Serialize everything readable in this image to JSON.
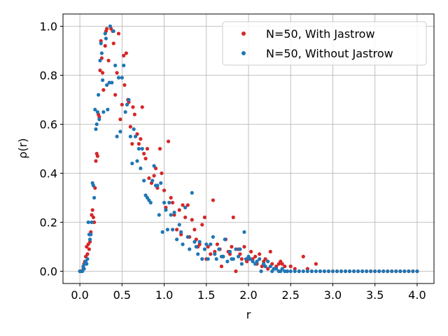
{
  "chart_data": {
    "type": "scatter",
    "xlabel": "r",
    "ylabel": "ρ(r)",
    "xlim": [
      -0.2,
      4.2
    ],
    "ylim": [
      -0.05,
      1.05
    ],
    "xticks": [
      0.0,
      0.5,
      1.0,
      1.5,
      2.0,
      2.5,
      3.0,
      3.5,
      4.0
    ],
    "xtick_labels": [
      "0.0",
      "0.5",
      "1.0",
      "1.5",
      "2.0",
      "2.5",
      "3.0",
      "3.5",
      "4.0"
    ],
    "yticks": [
      0.0,
      0.2,
      0.4,
      0.6,
      0.8,
      1.0
    ],
    "ytick_labels": [
      "0.0",
      "0.2",
      "0.4",
      "0.6",
      "0.8",
      "1.0"
    ],
    "grid": true,
    "legend_position": "top-right",
    "series": [
      {
        "name": "N=50, With Jastrow",
        "color": "#d62728",
        "points": [
          [
            0.0,
            0.0
          ],
          [
            0.02,
            0.0
          ],
          [
            0.04,
            0.01
          ],
          [
            0.05,
            0.03
          ],
          [
            0.06,
            0.04
          ],
          [
            0.07,
            0.06
          ],
          [
            0.08,
            0.1
          ],
          [
            0.09,
            0.07
          ],
          [
            0.1,
            0.11
          ],
          [
            0.11,
            0.09
          ],
          [
            0.12,
            0.12
          ],
          [
            0.13,
            0.16
          ],
          [
            0.14,
            0.23
          ],
          [
            0.15,
            0.25
          ],
          [
            0.16,
            0.22
          ],
          [
            0.17,
            0.2
          ],
          [
            0.18,
            0.34
          ],
          [
            0.19,
            0.45
          ],
          [
            0.2,
            0.48
          ],
          [
            0.21,
            0.47
          ],
          [
            0.22,
            0.64
          ],
          [
            0.23,
            0.63
          ],
          [
            0.24,
            0.82
          ],
          [
            0.25,
            0.94
          ],
          [
            0.26,
            0.87
          ],
          [
            0.27,
            0.81
          ],
          [
            0.28,
            0.74
          ],
          [
            0.3,
            0.92
          ],
          [
            0.31,
            0.98
          ],
          [
            0.32,
            0.99
          ],
          [
            0.34,
            0.86
          ],
          [
            0.35,
            0.77
          ],
          [
            0.37,
            0.99
          ],
          [
            0.39,
            0.98
          ],
          [
            0.4,
            0.93
          ],
          [
            0.42,
            0.72
          ],
          [
            0.44,
            0.81
          ],
          [
            0.46,
            0.97
          ],
          [
            0.48,
            0.62
          ],
          [
            0.5,
            0.68
          ],
          [
            0.52,
            0.88
          ],
          [
            0.53,
            0.76
          ],
          [
            0.55,
            0.89
          ],
          [
            0.57,
            0.7
          ],
          [
            0.58,
            0.69
          ],
          [
            0.6,
            0.59
          ],
          [
            0.62,
            0.52
          ],
          [
            0.63,
            0.67
          ],
          [
            0.65,
            0.64
          ],
          [
            0.68,
            0.56
          ],
          [
            0.7,
            0.52
          ],
          [
            0.72,
            0.54
          ],
          [
            0.74,
            0.67
          ],
          [
            0.76,
            0.48
          ],
          [
            0.78,
            0.46
          ],
          [
            0.8,
            0.5
          ],
          [
            0.82,
            0.38
          ],
          [
            0.85,
            0.36
          ],
          [
            0.88,
            0.39
          ],
          [
            0.9,
            0.42
          ],
          [
            0.92,
            0.34
          ],
          [
            0.95,
            0.5
          ],
          [
            0.97,
            0.4
          ],
          [
            1.0,
            0.33
          ],
          [
            1.02,
            0.26
          ],
          [
            1.05,
            0.53
          ],
          [
            1.08,
            0.3
          ],
          [
            1.1,
            0.28
          ],
          [
            1.12,
            0.23
          ],
          [
            1.15,
            0.17
          ],
          [
            1.18,
            0.25
          ],
          [
            1.2,
            0.15
          ],
          [
            1.22,
            0.27
          ],
          [
            1.25,
            0.22
          ],
          [
            1.28,
            0.27
          ],
          [
            1.3,
            0.14
          ],
          [
            1.33,
            0.21
          ],
          [
            1.36,
            0.17
          ],
          [
            1.38,
            0.13
          ],
          [
            1.4,
            0.1
          ],
          [
            1.42,
            0.11
          ],
          [
            1.45,
            0.19
          ],
          [
            1.48,
            0.22
          ],
          [
            1.5,
            0.05
          ],
          [
            1.52,
            0.1
          ],
          [
            1.55,
            0.07
          ],
          [
            1.58,
            0.29
          ],
          [
            1.6,
            0.08
          ],
          [
            1.63,
            0.11
          ],
          [
            1.66,
            0.09
          ],
          [
            1.68,
            0.02
          ],
          [
            1.7,
            0.06
          ],
          [
            1.73,
            0.13
          ],
          [
            1.76,
            0.08
          ],
          [
            1.78,
            0.07
          ],
          [
            1.8,
            0.1
          ],
          [
            1.82,
            0.22
          ],
          [
            1.85,
            0.0
          ],
          [
            1.88,
            0.09
          ],
          [
            1.9,
            0.07
          ],
          [
            1.92,
            0.05
          ],
          [
            1.95,
            0.1
          ],
          [
            1.98,
            0.04
          ],
          [
            2.0,
            0.05
          ],
          [
            2.03,
            0.08
          ],
          [
            2.05,
            0.05
          ],
          [
            2.08,
            0.06
          ],
          [
            2.1,
            0.03
          ],
          [
            2.13,
            0.07
          ],
          [
            2.16,
            0.02
          ],
          [
            2.18,
            0.04
          ],
          [
            2.2,
            0.05
          ],
          [
            2.23,
            0.01
          ],
          [
            2.26,
            0.08
          ],
          [
            2.28,
            0.03
          ],
          [
            2.3,
            0.01
          ],
          [
            2.33,
            0.02
          ],
          [
            2.36,
            0.03
          ],
          [
            2.38,
            0.04
          ],
          [
            2.4,
            0.03
          ],
          [
            2.43,
            0.02
          ],
          [
            2.46,
            0.0
          ],
          [
            2.5,
            0.02
          ],
          [
            2.55,
            0.01
          ],
          [
            2.6,
            0.0
          ],
          [
            2.65,
            0.06
          ],
          [
            2.7,
            0.01
          ],
          [
            2.75,
            0.0
          ],
          [
            2.8,
            0.03
          ],
          [
            2.85,
            0.0
          ],
          [
            2.9,
            0.0
          ],
          [
            2.95,
            0.0
          ],
          [
            3.0,
            0.0
          ],
          [
            3.05,
            0.0
          ],
          [
            3.1,
            0.0
          ],
          [
            3.15,
            0.0
          ],
          [
            3.2,
            0.0
          ],
          [
            3.25,
            0.0
          ],
          [
            3.3,
            0.0
          ],
          [
            3.35,
            0.0
          ],
          [
            3.4,
            0.0
          ],
          [
            3.45,
            0.0
          ],
          [
            3.5,
            0.0
          ],
          [
            3.55,
            0.0
          ],
          [
            3.6,
            0.0
          ],
          [
            3.65,
            0.0
          ],
          [
            3.7,
            0.0
          ],
          [
            3.75,
            0.0
          ],
          [
            3.8,
            0.0
          ],
          [
            3.85,
            0.0
          ],
          [
            3.9,
            0.0
          ],
          [
            3.95,
            0.0
          ],
          [
            4.0,
            0.0
          ]
        ]
      },
      {
        "name": "N=50, Without Jastrow",
        "color": "#1f77b4",
        "points": [
          [
            0.0,
            0.0
          ],
          [
            0.01,
            0.0
          ],
          [
            0.03,
            0.0
          ],
          [
            0.04,
            0.02
          ],
          [
            0.05,
            0.01
          ],
          [
            0.06,
            0.03
          ],
          [
            0.07,
            0.04
          ],
          [
            0.08,
            0.03
          ],
          [
            0.09,
            0.05
          ],
          [
            0.1,
            0.2
          ],
          [
            0.11,
            0.15
          ],
          [
            0.12,
            0.13
          ],
          [
            0.13,
            0.15
          ],
          [
            0.14,
            0.2
          ],
          [
            0.15,
            0.36
          ],
          [
            0.16,
            0.35
          ],
          [
            0.17,
            0.3
          ],
          [
            0.18,
            0.66
          ],
          [
            0.19,
            0.58
          ],
          [
            0.2,
            0.6
          ],
          [
            0.21,
            0.65
          ],
          [
            0.22,
            0.72
          ],
          [
            0.23,
            0.62
          ],
          [
            0.24,
            0.86
          ],
          [
            0.25,
            0.93
          ],
          [
            0.26,
            0.89
          ],
          [
            0.27,
            0.78
          ],
          [
            0.28,
            0.65
          ],
          [
            0.3,
            0.97
          ],
          [
            0.31,
            0.95
          ],
          [
            0.32,
            0.76
          ],
          [
            0.33,
            0.66
          ],
          [
            0.35,
            0.77
          ],
          [
            0.36,
            1.0
          ],
          [
            0.38,
            0.77
          ],
          [
            0.4,
            0.98
          ],
          [
            0.42,
            0.84
          ],
          [
            0.44,
            0.55
          ],
          [
            0.46,
            0.79
          ],
          [
            0.48,
            0.57
          ],
          [
            0.5,
            0.79
          ],
          [
            0.52,
            0.84
          ],
          [
            0.54,
            0.65
          ],
          [
            0.56,
            0.68
          ],
          [
            0.58,
            0.7
          ],
          [
            0.6,
            0.55
          ],
          [
            0.62,
            0.44
          ],
          [
            0.64,
            0.58
          ],
          [
            0.66,
            0.55
          ],
          [
            0.68,
            0.45
          ],
          [
            0.7,
            0.5
          ],
          [
            0.72,
            0.42
          ],
          [
            0.74,
            0.5
          ],
          [
            0.76,
            0.37
          ],
          [
            0.78,
            0.31
          ],
          [
            0.8,
            0.3
          ],
          [
            0.82,
            0.29
          ],
          [
            0.84,
            0.28
          ],
          [
            0.86,
            0.37
          ],
          [
            0.88,
            0.43
          ],
          [
            0.9,
            0.35
          ],
          [
            0.92,
            0.35
          ],
          [
            0.94,
            0.23
          ],
          [
            0.96,
            0.36
          ],
          [
            0.98,
            0.16
          ],
          [
            1.0,
            0.28
          ],
          [
            1.02,
            0.25
          ],
          [
            1.04,
            0.17
          ],
          [
            1.06,
            0.28
          ],
          [
            1.08,
            0.23
          ],
          [
            1.1,
            0.17
          ],
          [
            1.12,
            0.24
          ],
          [
            1.15,
            0.13
          ],
          [
            1.18,
            0.19
          ],
          [
            1.2,
            0.16
          ],
          [
            1.22,
            0.11
          ],
          [
            1.25,
            0.26
          ],
          [
            1.28,
            0.14
          ],
          [
            1.3,
            0.09
          ],
          [
            1.33,
            0.32
          ],
          [
            1.36,
            0.12
          ],
          [
            1.38,
            0.1
          ],
          [
            1.4,
            0.07
          ],
          [
            1.42,
            0.12
          ],
          [
            1.45,
            0.05
          ],
          [
            1.48,
            0.09
          ],
          [
            1.5,
            0.11
          ],
          [
            1.52,
            0.05
          ],
          [
            1.55,
            0.11
          ],
          [
            1.58,
            0.14
          ],
          [
            1.6,
            0.07
          ],
          [
            1.62,
            0.05
          ],
          [
            1.65,
            0.09
          ],
          [
            1.68,
            0.06
          ],
          [
            1.7,
            0.06
          ],
          [
            1.72,
            0.13
          ],
          [
            1.75,
            0.04
          ],
          [
            1.78,
            0.08
          ],
          [
            1.8,
            0.05
          ],
          [
            1.82,
            0.05
          ],
          [
            1.85,
            0.09
          ],
          [
            1.88,
            0.06
          ],
          [
            1.9,
            0.09
          ],
          [
            1.92,
            0.03
          ],
          [
            1.95,
            0.16
          ],
          [
            1.97,
            0.05
          ],
          [
            2.0,
            0.06
          ],
          [
            2.02,
            0.05
          ],
          [
            2.05,
            0.04
          ],
          [
            2.08,
            0.03
          ],
          [
            2.1,
            0.04
          ],
          [
            2.13,
            0.05
          ],
          [
            2.15,
            0.0
          ],
          [
            2.18,
            0.03
          ],
          [
            2.2,
            0.02
          ],
          [
            2.23,
            0.04
          ],
          [
            2.26,
            0.02
          ],
          [
            2.28,
            0.0
          ],
          [
            2.3,
            0.01
          ],
          [
            2.33,
            0.01
          ],
          [
            2.36,
            0.0
          ],
          [
            2.38,
            0.0
          ],
          [
            2.4,
            0.01
          ],
          [
            2.43,
            0.0
          ],
          [
            2.46,
            0.0
          ],
          [
            2.5,
            0.0
          ],
          [
            2.55,
            0.0
          ],
          [
            2.6,
            0.0
          ],
          [
            2.65,
            0.0
          ],
          [
            2.7,
            0.0
          ],
          [
            2.75,
            0.0
          ],
          [
            2.8,
            0.0
          ],
          [
            2.85,
            0.0
          ],
          [
            2.9,
            0.0
          ],
          [
            2.95,
            0.0
          ],
          [
            3.0,
            0.0
          ],
          [
            3.05,
            0.0
          ],
          [
            3.1,
            0.0
          ],
          [
            3.15,
            0.0
          ],
          [
            3.2,
            0.0
          ],
          [
            3.25,
            0.0
          ],
          [
            3.3,
            0.0
          ],
          [
            3.35,
            0.0
          ],
          [
            3.4,
            0.0
          ],
          [
            3.45,
            0.0
          ],
          [
            3.5,
            0.0
          ],
          [
            3.55,
            0.0
          ],
          [
            3.6,
            0.0
          ],
          [
            3.65,
            0.0
          ],
          [
            3.7,
            0.0
          ],
          [
            3.75,
            0.0
          ],
          [
            3.8,
            0.0
          ],
          [
            3.85,
            0.0
          ],
          [
            3.9,
            0.0
          ],
          [
            3.95,
            0.0
          ],
          [
            4.0,
            0.0
          ]
        ]
      }
    ]
  }
}
